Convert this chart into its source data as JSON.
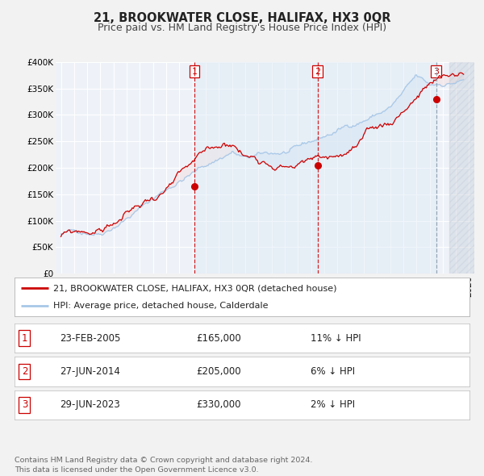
{
  "title": "21, BROOKWATER CLOSE, HALIFAX, HX3 0QR",
  "subtitle": "Price paid vs. HM Land Registry's House Price Index (HPI)",
  "ylim": [
    0,
    400000
  ],
  "yticks": [
    0,
    50000,
    100000,
    150000,
    200000,
    250000,
    300000,
    350000,
    400000
  ],
  "ytick_labels": [
    "£0",
    "£50K",
    "£100K",
    "£150K",
    "£200K",
    "£250K",
    "£300K",
    "£350K",
    "£400K"
  ],
  "xlim_start": 1994.6,
  "xlim_end": 2026.4,
  "sale_dates": [
    2005.14,
    2014.49,
    2023.49
  ],
  "sale_prices": [
    165000,
    205000,
    330000
  ],
  "sale_labels": [
    "1",
    "2",
    "3"
  ],
  "hpi_color": "#a8c8e8",
  "price_color": "#cc0000",
  "background_color": "#f2f2f2",
  "plot_bg_color": "#eef2f8",
  "grid_color": "#ffffff",
  "shade_between_color": "#dce8f4",
  "legend_label_price": "21, BROOKWATER CLOSE, HALIFAX, HX3 0QR (detached house)",
  "legend_label_hpi": "HPI: Average price, detached house, Calderdale",
  "table_rows": [
    [
      "1",
      "23-FEB-2005",
      "£165,000",
      "11% ↓ HPI"
    ],
    [
      "2",
      "27-JUN-2014",
      "£205,000",
      "6% ↓ HPI"
    ],
    [
      "3",
      "29-JUN-2023",
      "£330,000",
      "2% ↓ HPI"
    ]
  ],
  "footnote": "Contains HM Land Registry data © Crown copyright and database right 2024.\nThis data is licensed under the Open Government Licence v3.0.",
  "title_fontsize": 10.5,
  "subtitle_fontsize": 9.0,
  "tick_fontsize": 7.5,
  "legend_fontsize": 8.0,
  "table_fontsize": 8.5,
  "footnote_fontsize": 6.8
}
